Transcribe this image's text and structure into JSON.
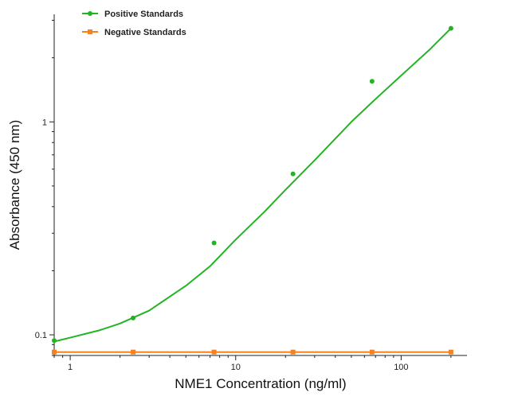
{
  "chart_data": {
    "type": "scatter",
    "xlabel": "NME1 Concentration (ng/ml)",
    "ylabel": "Absorbance (450 nm)",
    "x_scale": "log",
    "y_scale": "log",
    "xlim": [
      0.8,
      250
    ],
    "ylim": [
      0.08,
      3.2
    ],
    "x_ticks": [
      1,
      10,
      100
    ],
    "x_tick_labels": [
      "1",
      "10",
      "100"
    ],
    "y_ticks": [
      0.1,
      1
    ],
    "y_tick_labels": [
      "0.1",
      "1"
    ],
    "grid": false,
    "legend_position": "top-left",
    "series": [
      {
        "name": "Positive Standards",
        "color": "#22b422",
        "marker": "circle",
        "x": [
          0.8,
          2.4,
          7.4,
          22.2,
          66.7,
          200
        ],
        "y": [
          0.094,
          0.12,
          0.27,
          0.57,
          1.55,
          2.75
        ],
        "curve": {
          "x": [
            0.8,
            1,
            1.5,
            2,
            3,
            5,
            7,
            10,
            15,
            20,
            30,
            50,
            70,
            100,
            150,
            200
          ],
          "y": [
            0.093,
            0.097,
            0.105,
            0.113,
            0.13,
            0.17,
            0.21,
            0.28,
            0.38,
            0.48,
            0.66,
            1.0,
            1.28,
            1.65,
            2.2,
            2.75
          ]
        }
      },
      {
        "name": "Negative Standards",
        "color": "#f5821f",
        "marker": "square",
        "x": [
          0.8,
          2.4,
          7.4,
          22.2,
          66.7,
          200
        ],
        "y": [
          0.083,
          0.083,
          0.083,
          0.083,
          0.083,
          0.083
        ]
      }
    ]
  }
}
